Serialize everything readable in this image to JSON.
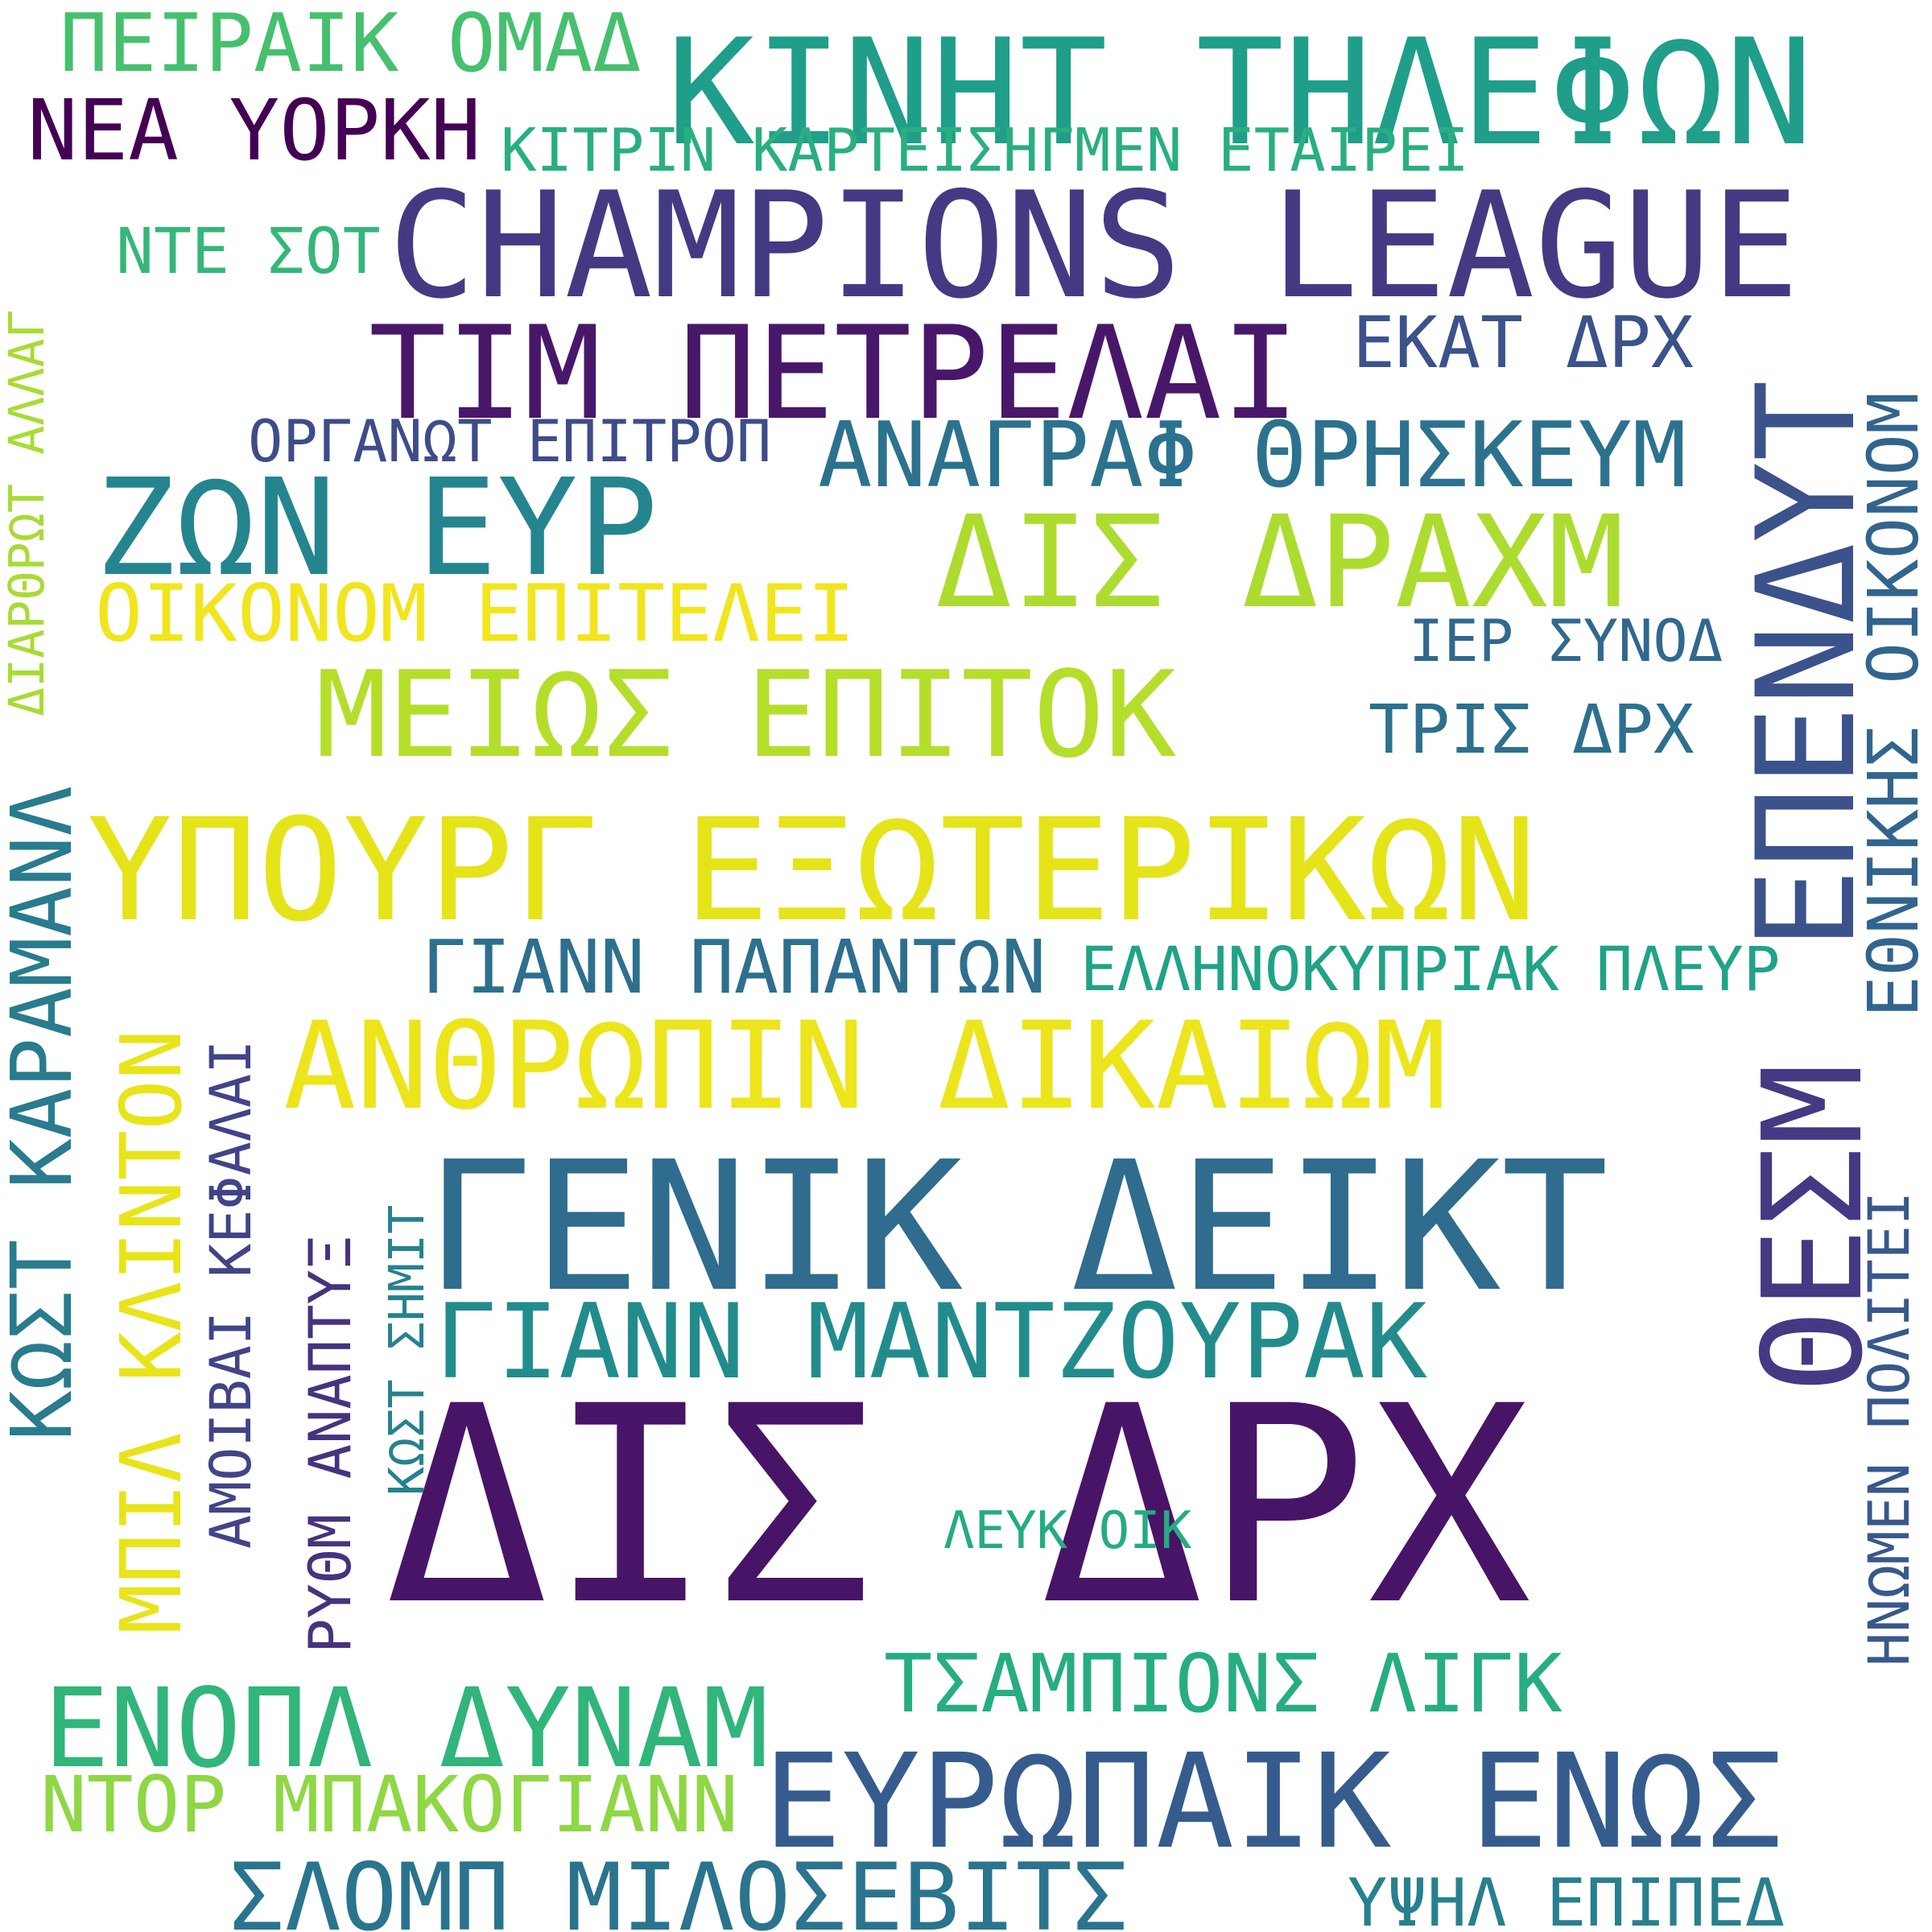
{
  "words": {
    "peiraik_omad": {
      "text": "ΠΕΙΡΑΙΚ ΟΜΑΔ",
      "color": "#46c06f"
    },
    "kinht_thlefwn": {
      "text": "ΚΙΝΗΤ ΤΗΛΕΦΩΝ",
      "color": "#1f9e89"
    },
    "nea_yorkh": {
      "text": "ΝΕΑ ΥΟΡΚΗ",
      "color": "#440154"
    },
    "kitrin_karteis": {
      "text": "ΚΙΤΡΙΝ ΚΑΡΤΕΙΣΗΓΜΕΝ ΕΤΑΙΡΕΙ",
      "color": "#29af7f"
    },
    "nte_sot": {
      "text": "ΝΤΕ ΣΟΤ",
      "color": "#35b779"
    },
    "champions_league": {
      "text": "CHAMPIONS LEAGUE",
      "color": "#443a83"
    },
    "tim_petrelai": {
      "text": "ΤΙΜ ΠΕΤΡΕΛΑΙ",
      "color": "#481769"
    },
    "ekat_drx": {
      "text": "ΕΚΑΤ ΔΡΧ",
      "color": "#3b528b"
    },
    "organwt_epitrop": {
      "text": "ΟΡΓΑΝΩΤ ΕΠΙΤΡΟΠ",
      "color": "#3e4c8a"
    },
    "anagraf_thrhskeum": {
      "text": "ΑΝΑΓΡΑΦ ΘΡΗΣΚΕΥΜ",
      "color": "#2c728e"
    },
    "zwn_eyr": {
      "text": "ΖΩΝ ΕΥΡ",
      "color": "#25858e"
    },
    "dis_draxm": {
      "text": "ΔΙΣ ΔΡΑΧΜ",
      "color": "#addc30"
    },
    "oikonom_epitelei": {
      "text": "ΟΙΚΟΝΟΜ ΕΠΙΤΕΛΕΙ",
      "color": "#f1e51d"
    },
    "ier_synod": {
      "text": "ΙΕΡ ΣΥΝΟΔ",
      "color": "#31688e"
    },
    "meiws_epitok": {
      "text": "ΜΕΙΩΣ ΕΠΙΤΟΚ",
      "color": "#b5de2b"
    },
    "tris_drx": {
      "text": "ΤΡΙΣ ΔΡΧ",
      "color": "#2d708e"
    },
    "ypourg_ekswterikwn": {
      "text": "ΥΠΟΥΡΓ ΕΞΩΤΕΡΙΚΩΝ",
      "color": "#e5e419"
    },
    "giann_papantwn": {
      "text": "ΓΙΑΝΝ ΠΑΠΑΝΤΩΝ",
      "color": "#2e6f8e"
    },
    "ellhnokypriak_pleyr": {
      "text": "ΕΛΛΗΝΟΚΥΠΡΙΑΚ ΠΛΕΥΡ",
      "color": "#20a386"
    },
    "anthrwpin_dikaiwm": {
      "text": "ΑΝΘΡΩΠΙΝ ΔΙΚΑΙΩΜ",
      "color": "#ece51b"
    },
    "genik_deikt": {
      "text": "ΓΕΝΙΚ ΔΕΙΚΤ",
      "color": "#2f6c8e"
    },
    "giann_mantzoyrak": {
      "text": "ΓΙΑΝΝ ΜΑΝΤΖΟΥΡΑΚ",
      "color": "#228c8d"
    },
    "dis_drx": {
      "text": "ΔΙΣ ΔΡΧ",
      "color": "#481467"
    },
    "leyk_oik": {
      "text": "ΛΕΥΚ ΟΙΚ",
      "color": "#25ab82"
    },
    "tsampions_ligk": {
      "text": "ΤΣΑΜΠΙΟΝΣ ΛΙΓΚ",
      "color": "#26ad81"
    },
    "enopl_dynam": {
      "text": "ΕΝΟΠΛ ΔΥΝΑΜ",
      "color": "#31b57b"
    },
    "ntor_mpakogiann": {
      "text": "ΝΤΟΡ ΜΠΑΚΟΓΙΑΝΝ",
      "color": "#8fd744"
    },
    "eyrwpaik_enws": {
      "text": "ΕΥΡΩΠΑΙΚ ΕΝΩΣ",
      "color": "#365c8d"
    },
    "slomp_milosebits": {
      "text": "ΣΛΟΜΠ ΜΙΛΟΣΕΒΙΤΣ",
      "color": "#2b748e"
    },
    "yphl_epiped": {
      "text": "ΥΨΗΛ ΕΠΙΠΕΔ",
      "color": "#27808e"
    },
    "diarthrwt_allag": {
      "text": "ΔΙΑΡΘΡΩΤ ΑΛΛΑΓ",
      "color": "#a8db34"
    },
    "kwst_karamanl": {
      "text": "ΚΩΣΤ ΚΑΡΑΜΑΝΛ",
      "color": "#297b8e"
    },
    "mpil_klinton": {
      "text": "ΜΠΙΛ ΚΛΙΝΤΟΝ",
      "color": "#e8e419"
    },
    "amoibai_kefalai": {
      "text": "ΑΜΟΙΒΑΙ ΚΕΦΑΛΑΙ",
      "color": "#414487"
    },
    "rythm_anaptyks": {
      "text": "ΡΥΘΜ ΑΝΑΠΤΥΞ",
      "color": "#46337e"
    },
    "kwst_shmit": {
      "text": "ΚΩΣΤ ΣΗΜΙΤ",
      "color": "#26828e"
    },
    "ependuyt": {
      "text": "ΕΠΕΝΔΥΤ",
      "color": "#3b528b"
    },
    "thesm": {
      "text": "ΘΕΣΜ",
      "color": "#443983"
    },
    "ethnikhs_oikonom": {
      "text": "ΕΘΝΙΚΗΣ ΟΙΚΟΝΟΜ",
      "color": "#32658e"
    },
    "hnwmen_politei": {
      "text": "ΗΝΩΜΕΝ ΠΟΛΙΤΕΙ",
      "color": "#38588c"
    }
  }
}
